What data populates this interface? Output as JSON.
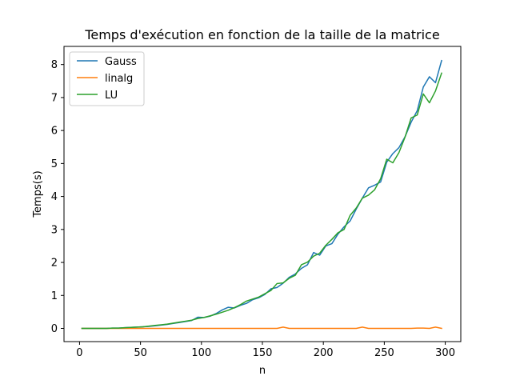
{
  "chart_data": {
    "type": "line",
    "title": "Temps d'exécution en fonction de la taille de la matrice",
    "xlabel": "n",
    "ylabel": "Temps(s)",
    "xlim": [
      -12.75,
      312.75
    ],
    "ylim": [
      -0.4,
      8.55
    ],
    "xticks": [
      0,
      50,
      100,
      150,
      200,
      250,
      300
    ],
    "yticks": [
      0,
      1,
      2,
      3,
      4,
      5,
      6,
      7,
      8
    ],
    "grid": false,
    "legend_position": "upper-left",
    "x": [
      2,
      7,
      12,
      17,
      22,
      27,
      32,
      37,
      42,
      47,
      52,
      57,
      62,
      67,
      72,
      77,
      82,
      87,
      92,
      97,
      102,
      107,
      112,
      117,
      122,
      127,
      132,
      137,
      142,
      147,
      152,
      157,
      162,
      167,
      172,
      177,
      182,
      187,
      192,
      197,
      202,
      207,
      212,
      217,
      222,
      227,
      232,
      237,
      242,
      247,
      252,
      257,
      262,
      267,
      272,
      277,
      282,
      287,
      292,
      297
    ],
    "series": [
      {
        "name": "Gauss",
        "color": "#1f77b4",
        "values": [
          0.0,
          0.0,
          0.0,
          0.0,
          0.0,
          0.01,
          0.01,
          0.02,
          0.03,
          0.04,
          0.05,
          0.06,
          0.08,
          0.1,
          0.12,
          0.15,
          0.18,
          0.21,
          0.24,
          0.34,
          0.33,
          0.37,
          0.45,
          0.56,
          0.64,
          0.62,
          0.7,
          0.76,
          0.87,
          0.93,
          1.03,
          1.2,
          1.24,
          1.37,
          1.55,
          1.65,
          1.82,
          1.93,
          2.3,
          2.22,
          2.5,
          2.57,
          2.86,
          3.08,
          3.26,
          3.62,
          3.95,
          4.26,
          4.34,
          4.44,
          5.04,
          5.3,
          5.48,
          5.81,
          6.25,
          6.6,
          7.32,
          7.63,
          7.45,
          8.12
        ]
      },
      {
        "name": "linalg",
        "color": "#ff7f0e",
        "values": [
          0.0,
          0.0,
          0.0,
          0.0,
          0.0,
          0.0,
          0.0,
          0.0,
          0.0,
          0.0,
          0.0,
          0.0,
          0.0,
          0.0,
          0.0,
          0.0,
          0.0,
          0.0,
          0.0,
          0.0,
          0.0,
          0.0,
          0.0,
          0.0,
          0.0,
          0.0,
          0.0,
          0.0,
          0.0,
          0.0,
          0.0,
          0.0,
          0.0,
          0.04,
          0.0,
          0.0,
          0.0,
          0.0,
          0.0,
          0.0,
          0.0,
          0.0,
          0.0,
          0.0,
          0.0,
          0.0,
          0.04,
          0.0,
          0.0,
          0.0,
          0.0,
          0.0,
          0.0,
          0.0,
          0.0,
          0.01,
          0.01,
          0.0,
          0.04,
          0.0
        ]
      },
      {
        "name": "LU",
        "color": "#2ca02c",
        "values": [
          0.0,
          0.0,
          0.0,
          0.0,
          0.0,
          0.01,
          0.01,
          0.02,
          0.03,
          0.04,
          0.05,
          0.07,
          0.09,
          0.11,
          0.13,
          0.16,
          0.19,
          0.22,
          0.25,
          0.3,
          0.33,
          0.38,
          0.43,
          0.49,
          0.55,
          0.63,
          0.72,
          0.83,
          0.89,
          0.95,
          1.05,
          1.15,
          1.36,
          1.38,
          1.52,
          1.61,
          1.93,
          2.01,
          2.19,
          2.28,
          2.52,
          2.7,
          2.9,
          3.0,
          3.43,
          3.65,
          3.95,
          4.04,
          4.2,
          4.54,
          5.13,
          5.02,
          5.33,
          5.8,
          6.38,
          6.47,
          7.11,
          6.84,
          7.2,
          7.74
        ]
      }
    ]
  }
}
